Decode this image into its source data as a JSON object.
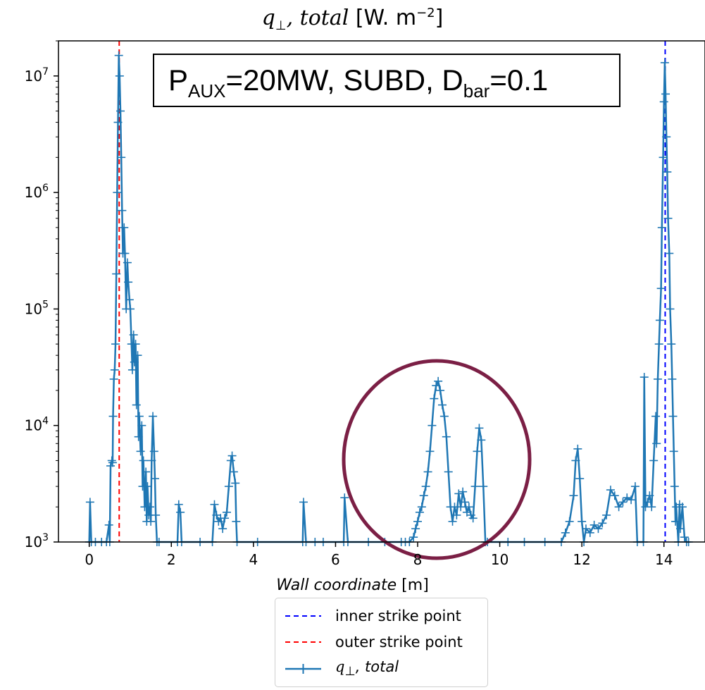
{
  "title": {
    "symbol": "q",
    "sub": "⊥",
    "rest": ", total",
    "units": " [W. m",
    "sup": "−2",
    "close": "]"
  },
  "annotation": {
    "p": "P",
    "p_sub": "AUX",
    "p_rest": "=20MW, SUBD, D",
    "d_sub": "bar",
    "d_rest": "=0.1"
  },
  "colors": {
    "series": "#1f77b4",
    "inner": "#0000ff",
    "outer": "#ff0000",
    "circle": "#7b1f45"
  },
  "chart_data": {
    "type": "line",
    "yscale": "log",
    "xlabel": "Wall coordinate [m]",
    "xlim": [
      -0.75,
      15.0
    ],
    "ylim": [
      1000,
      20000000
    ],
    "xticks": [
      0,
      2,
      4,
      6,
      8,
      10,
      12,
      14
    ],
    "ytick_labels": [
      {
        "value": 1000,
        "base": "10",
        "exp": "3"
      },
      {
        "value": 10000,
        "base": "10",
        "exp": "4"
      },
      {
        "value": 100000,
        "base": "10",
        "exp": "5"
      },
      {
        "value": 1000000,
        "base": "10",
        "exp": "6"
      },
      {
        "value": 10000000,
        "base": "10",
        "exp": "7"
      }
    ],
    "vlines": [
      {
        "name": "inner strike point",
        "x": 14.03,
        "color": "#0000ff",
        "style": "dashed"
      },
      {
        "name": "outer strike point",
        "x": 0.73,
        "color": "#ff0000",
        "style": "dashed"
      }
    ],
    "series": [
      {
        "name": "q⊥, total",
        "color": "#1f77b4",
        "marker": "+",
        "points": [
          [
            0.0,
            1000
          ],
          [
            0.02,
            2200
          ],
          [
            0.05,
            1000
          ],
          [
            0.15,
            1000
          ],
          [
            0.3,
            1000
          ],
          [
            0.42,
            1000
          ],
          [
            0.48,
            1400
          ],
          [
            0.5,
            1000
          ],
          [
            0.52,
            4500
          ],
          [
            0.55,
            5000
          ],
          [
            0.57,
            4800
          ],
          [
            0.58,
            12000
          ],
          [
            0.6,
            25000
          ],
          [
            0.62,
            30000
          ],
          [
            0.64,
            50000
          ],
          [
            0.66,
            200000
          ],
          [
            0.68,
            1000000
          ],
          [
            0.7,
            4000000
          ],
          [
            0.72,
            15000000
          ],
          [
            0.74,
            10000000
          ],
          [
            0.76,
            5000000
          ],
          [
            0.78,
            2000000
          ],
          [
            0.8,
            700000
          ],
          [
            0.82,
            300000
          ],
          [
            0.85,
            500000
          ],
          [
            0.87,
            300000
          ],
          [
            0.9,
            100000
          ],
          [
            0.93,
            250000
          ],
          [
            0.95,
            170000
          ],
          [
            0.98,
            120000
          ],
          [
            1.0,
            100000
          ],
          [
            1.03,
            50000
          ],
          [
            1.05,
            30000
          ],
          [
            1.08,
            60000
          ],
          [
            1.1,
            35000
          ],
          [
            1.13,
            50000
          ],
          [
            1.15,
            15000
          ],
          [
            1.18,
            40000
          ],
          [
            1.2,
            8000
          ],
          [
            1.22,
            12000
          ],
          [
            1.25,
            6000
          ],
          [
            1.28,
            10000
          ],
          [
            1.3,
            3000
          ],
          [
            1.32,
            5000
          ],
          [
            1.35,
            2000
          ],
          [
            1.38,
            4000
          ],
          [
            1.4,
            1500
          ],
          [
            1.42,
            3000
          ],
          [
            1.45,
            1700
          ],
          [
            1.48,
            2000
          ],
          [
            1.5,
            1500
          ],
          [
            1.52,
            5000
          ],
          [
            1.55,
            12000
          ],
          [
            1.58,
            6000
          ],
          [
            1.6,
            3500
          ],
          [
            1.62,
            1700
          ],
          [
            1.65,
            1000
          ],
          [
            1.7,
            1000
          ],
          [
            2.15,
            1000
          ],
          [
            2.18,
            2100
          ],
          [
            2.22,
            1800
          ],
          [
            2.25,
            1000
          ],
          [
            2.7,
            1000
          ],
          [
            3.0,
            1000
          ],
          [
            3.05,
            2100
          ],
          [
            3.1,
            1700
          ],
          [
            3.15,
            1500
          ],
          [
            3.2,
            1600
          ],
          [
            3.25,
            1300
          ],
          [
            3.3,
            1600
          ],
          [
            3.35,
            1800
          ],
          [
            3.4,
            3000
          ],
          [
            3.45,
            5000
          ],
          [
            3.48,
            5500
          ],
          [
            3.52,
            4000
          ],
          [
            3.56,
            3200
          ],
          [
            3.58,
            1500
          ],
          [
            3.6,
            1000
          ],
          [
            4.1,
            1000
          ],
          [
            5.2,
            1000
          ],
          [
            5.22,
            2200
          ],
          [
            5.28,
            1000
          ],
          [
            5.5,
            1000
          ],
          [
            5.7,
            1000
          ],
          [
            6.2,
            1000
          ],
          [
            6.22,
            2400
          ],
          [
            6.3,
            1000
          ],
          [
            6.8,
            1000
          ],
          [
            7.2,
            1000
          ],
          [
            7.6,
            1000
          ],
          [
            7.7,
            1000
          ],
          [
            7.8,
            1000
          ],
          [
            7.9,
            1100
          ],
          [
            7.95,
            1300
          ],
          [
            8.0,
            1500
          ],
          [
            8.05,
            1800
          ],
          [
            8.1,
            2000
          ],
          [
            8.15,
            2500
          ],
          [
            8.2,
            3000
          ],
          [
            8.25,
            4000
          ],
          [
            8.3,
            6000
          ],
          [
            8.35,
            10000
          ],
          [
            8.4,
            17000
          ],
          [
            8.45,
            22000
          ],
          [
            8.5,
            24000
          ],
          [
            8.55,
            20000
          ],
          [
            8.6,
            15000
          ],
          [
            8.65,
            12000
          ],
          [
            8.7,
            8000
          ],
          [
            8.75,
            4000
          ],
          [
            8.8,
            2000
          ],
          [
            8.85,
            1500
          ],
          [
            8.9,
            2000
          ],
          [
            8.95,
            1700
          ],
          [
            9.0,
            2600
          ],
          [
            9.05,
            2000
          ],
          [
            9.1,
            2700
          ],
          [
            9.15,
            2200
          ],
          [
            9.2,
            1800
          ],
          [
            9.25,
            2000
          ],
          [
            9.3,
            1700
          ],
          [
            9.35,
            1600
          ],
          [
            9.4,
            3000
          ],
          [
            9.45,
            6000
          ],
          [
            9.5,
            9500
          ],
          [
            9.55,
            7500
          ],
          [
            9.6,
            3000
          ],
          [
            9.65,
            1000
          ],
          [
            9.7,
            1000
          ],
          [
            10.2,
            1000
          ],
          [
            10.6,
            1000
          ],
          [
            11.1,
            1000
          ],
          [
            11.5,
            1000
          ],
          [
            11.6,
            1200
          ],
          [
            11.7,
            1500
          ],
          [
            11.8,
            2500
          ],
          [
            11.85,
            5000
          ],
          [
            11.9,
            6300
          ],
          [
            11.95,
            3500
          ],
          [
            12.0,
            1500
          ],
          [
            12.05,
            1000
          ],
          [
            12.1,
            1300
          ],
          [
            12.2,
            1200
          ],
          [
            12.3,
            1400
          ],
          [
            12.4,
            1300
          ],
          [
            12.5,
            1450
          ],
          [
            12.6,
            1700
          ],
          [
            12.7,
            2800
          ],
          [
            12.8,
            2500
          ],
          [
            12.9,
            2000
          ],
          [
            13.0,
            2200
          ],
          [
            13.1,
            2400
          ],
          [
            13.2,
            2300
          ],
          [
            13.3,
            3000
          ],
          [
            13.35,
            1000
          ],
          [
            13.5,
            1000
          ],
          [
            13.52,
            26000
          ],
          [
            13.55,
            2000
          ],
          [
            13.6,
            2200
          ],
          [
            13.65,
            2500
          ],
          [
            13.7,
            2000
          ],
          [
            13.75,
            5000
          ],
          [
            13.8,
            12000
          ],
          [
            13.82,
            7000
          ],
          [
            13.85,
            25000
          ],
          [
            13.88,
            50000
          ],
          [
            13.9,
            80000
          ],
          [
            13.93,
            150000
          ],
          [
            13.95,
            500000
          ],
          [
            13.98,
            2000000
          ],
          [
            14.0,
            6000000
          ],
          [
            14.02,
            13000000
          ],
          [
            14.04,
            7000000
          ],
          [
            14.06,
            3000000
          ],
          [
            14.08,
            1500000
          ],
          [
            14.1,
            600000
          ],
          [
            14.13,
            300000
          ],
          [
            14.15,
            100000
          ],
          [
            14.18,
            50000
          ],
          [
            14.2,
            25000
          ],
          [
            14.22,
            12000
          ],
          [
            14.24,
            6000
          ],
          [
            14.26,
            3000
          ],
          [
            14.28,
            1500
          ],
          [
            14.3,
            2000
          ],
          [
            14.32,
            1500
          ],
          [
            14.35,
            1000
          ],
          [
            14.38,
            2100
          ],
          [
            14.4,
            1300
          ],
          [
            14.45,
            2000
          ],
          [
            14.5,
            1100
          ],
          [
            14.55,
            1000
          ],
          [
            14.6,
            1000
          ]
        ]
      }
    ],
    "legend": {
      "placement": "below-axes",
      "entries": [
        {
          "label": "inner strike point",
          "color": "#0000ff",
          "style": "dashed"
        },
        {
          "label": "outer strike point",
          "color": "#ff0000",
          "style": "dashed"
        },
        {
          "label_symbol": "q",
          "label_sub": "⊥",
          "label_rest": ", total",
          "color": "#1f77b4",
          "style": "line-plus"
        }
      ]
    }
  }
}
